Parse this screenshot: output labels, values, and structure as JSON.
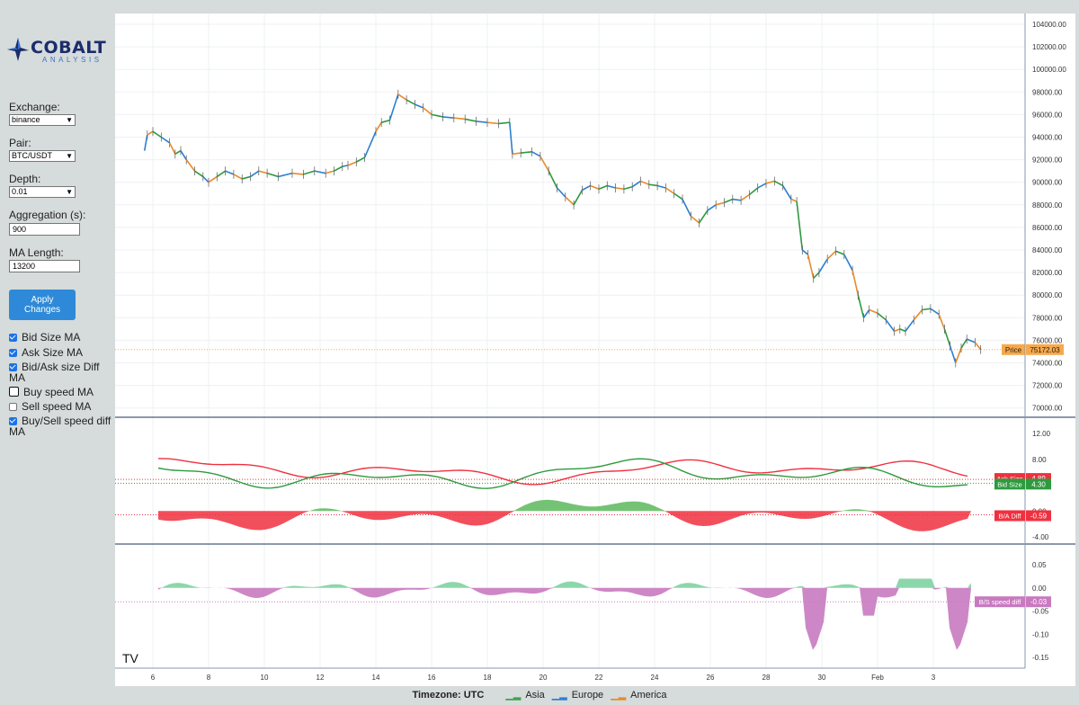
{
  "app": {
    "brand": "COBALT",
    "brand_sub": "ANALYSIS"
  },
  "sidebar": {
    "exchange_label": "Exchange:",
    "exchange_value": "binance",
    "pair_label": "Pair:",
    "pair_value": "BTC/USDT",
    "depth_label": "Depth:",
    "depth_value": "0.01",
    "aggregation_label": "Aggregation (s):",
    "aggregation_value": "900",
    "ma_length_label": "MA Length:",
    "ma_length_value": "13200",
    "apply_label_1": "Apply",
    "apply_label_2": "Changes",
    "checkboxes": [
      {
        "label": "Bid Size MA",
        "checked": true
      },
      {
        "label": "Ask Size MA",
        "checked": true
      },
      {
        "label": "Bid/Ask size Diff",
        "label2": "MA",
        "checked": true
      },
      {
        "label": "Buy speed MA",
        "checked": false
      },
      {
        "label": "Sell speed MA",
        "checked": false
      },
      {
        "label": "Buy/Sell speed diff",
        "label2": "MA",
        "checked": true
      }
    ]
  },
  "footer": {
    "timezone": "Timezone: UTC",
    "legend": [
      {
        "label": "Asia",
        "color": "#3aa24b"
      },
      {
        "label": "Europe",
        "color": "#2e7fd0"
      },
      {
        "label": "America",
        "color": "#e88a2c"
      }
    ]
  },
  "chart_data": [
    {
      "type": "line",
      "panel": "price",
      "series": [
        {
          "name": "Price"
        }
      ],
      "x_ticks": [
        "6",
        "8",
        "10",
        "12",
        "14",
        "16",
        "18",
        "20",
        "22",
        "24",
        "26",
        "28",
        "30",
        "Feb",
        "3"
      ],
      "y_ticks": [
        "104000.00",
        "102000.00",
        "100000.00",
        "98000.00",
        "96000.00",
        "94000.00",
        "92000.00",
        "90000.00",
        "88000.00",
        "86000.00",
        "84000.00",
        "82000.00",
        "80000.00",
        "78000.00",
        "76000.00",
        "74000.00",
        "72000.00",
        "70000.00"
      ],
      "ylim": [
        69000,
        105000
      ],
      "price_points": [
        [
          5.7,
          92800
        ],
        [
          5.8,
          94200
        ],
        [
          6.0,
          94500
        ],
        [
          6.3,
          94000
        ],
        [
          6.6,
          93500
        ],
        [
          6.8,
          92500
        ],
        [
          7.0,
          92800
        ],
        [
          7.2,
          92000
        ],
        [
          7.5,
          91000
        ],
        [
          7.8,
          90500
        ],
        [
          8.0,
          90000
        ],
        [
          8.3,
          90500
        ],
        [
          8.6,
          91000
        ],
        [
          8.9,
          90700
        ],
        [
          9.2,
          90300
        ],
        [
          9.5,
          90500
        ],
        [
          9.8,
          91000
        ],
        [
          10.1,
          90800
        ],
        [
          10.5,
          90500
        ],
        [
          11.0,
          90800
        ],
        [
          11.4,
          90700
        ],
        [
          11.8,
          91000
        ],
        [
          12.2,
          90800
        ],
        [
          12.5,
          91000
        ],
        [
          12.8,
          91400
        ],
        [
          13.0,
          91500
        ],
        [
          13.3,
          91800
        ],
        [
          13.6,
          92200
        ],
        [
          14.0,
          94500
        ],
        [
          14.2,
          95300
        ],
        [
          14.5,
          95500
        ],
        [
          14.8,
          97800
        ],
        [
          15.1,
          97300
        ],
        [
          15.4,
          96900
        ],
        [
          15.7,
          96600
        ],
        [
          16.0,
          96000
        ],
        [
          16.4,
          95800
        ],
        [
          16.8,
          95700
        ],
        [
          17.2,
          95600
        ],
        [
          17.6,
          95400
        ],
        [
          18.0,
          95300
        ],
        [
          18.4,
          95200
        ],
        [
          18.8,
          95300
        ],
        [
          18.9,
          92500
        ],
        [
          19.2,
          92600
        ],
        [
          19.6,
          92700
        ],
        [
          19.9,
          92300
        ],
        [
          20.2,
          91000
        ],
        [
          20.5,
          89500
        ],
        [
          20.8,
          88700
        ],
        [
          21.1,
          88000
        ],
        [
          21.4,
          89300
        ],
        [
          21.7,
          89700
        ],
        [
          22.0,
          89400
        ],
        [
          22.3,
          89700
        ],
        [
          22.6,
          89500
        ],
        [
          22.9,
          89400
        ],
        [
          23.2,
          89600
        ],
        [
          23.5,
          90100
        ],
        [
          23.8,
          89800
        ],
        [
          24.1,
          89700
        ],
        [
          24.4,
          89500
        ],
        [
          24.7,
          89000
        ],
        [
          25.0,
          88500
        ],
        [
          25.3,
          87000
        ],
        [
          25.6,
          86400
        ],
        [
          25.9,
          87500
        ],
        [
          26.2,
          88000
        ],
        [
          26.5,
          88200
        ],
        [
          26.8,
          88500
        ],
        [
          27.1,
          88400
        ],
        [
          27.4,
          88900
        ],
        [
          27.7,
          89500
        ],
        [
          28.0,
          89900
        ],
        [
          28.3,
          90100
        ],
        [
          28.6,
          89700
        ],
        [
          28.9,
          88500
        ],
        [
          29.1,
          88300
        ],
        [
          29.3,
          84000
        ],
        [
          29.5,
          83600
        ],
        [
          29.7,
          81500
        ],
        [
          29.9,
          82000
        ],
        [
          30.2,
          83200
        ],
        [
          30.5,
          83900
        ],
        [
          30.8,
          83600
        ],
        [
          31.1,
          82200
        ],
        [
          31.3,
          80000
        ],
        [
          31.5,
          78000
        ],
        [
          31.7,
          78700
        ],
        [
          32.0,
          78400
        ],
        [
          32.3,
          77800
        ],
        [
          32.6,
          76800
        ],
        [
          32.8,
          77000
        ],
        [
          33.0,
          76800
        ],
        [
          33.3,
          77800
        ],
        [
          33.6,
          78700
        ],
        [
          33.9,
          78800
        ],
        [
          34.2,
          78300
        ],
        [
          34.4,
          77000
        ],
        [
          34.6,
          75500
        ],
        [
          34.8,
          74000
        ],
        [
          35.0,
          75300
        ],
        [
          35.2,
          76100
        ],
        [
          35.5,
          75800
        ],
        [
          35.7,
          75172
        ]
      ]
    },
    {
      "type": "line",
      "panel": "size",
      "series": [
        {
          "name": "Ask Size",
          "color": "#f0303f",
          "last": "4.89"
        },
        {
          "name": "Bid Size",
          "color": "#2e9a3e",
          "last": "4.30"
        },
        {
          "name": "B/A Diff",
          "color": "#f0303f",
          "last": "-0.59"
        }
      ],
      "y_ticks": [
        "12.00",
        "8.00",
        "0.00",
        "-4.00"
      ],
      "ylim": [
        -5,
        14.5
      ]
    },
    {
      "type": "area",
      "panel": "speed",
      "series": [
        {
          "name": "B/S speed diff",
          "color": "#c87ac0",
          "last": "-0.03"
        }
      ],
      "y_ticks": [
        "0.05",
        "0.00",
        "-0.05",
        "-0.10",
        "-0.15"
      ],
      "ylim": [
        -0.165,
        0.075
      ]
    }
  ],
  "labels": {
    "price_tag": "Price",
    "price_value": "75172.03",
    "ask_tag": "Ask Size",
    "ask_value": "4.89",
    "bid_tag": "Bid Size",
    "bid_value": "4.30",
    "diff_tag": "B/A Diff",
    "diff_value": "-0.59",
    "speed_tag": "B/S speed diff",
    "speed_value": "-0.03"
  },
  "colors": {
    "ask": "#f0303f",
    "bid": "#2e9a3e",
    "speed_neg": "#c87ac0",
    "speed_pos": "#7fd1a2",
    "price_tag": "#f7a84a"
  }
}
